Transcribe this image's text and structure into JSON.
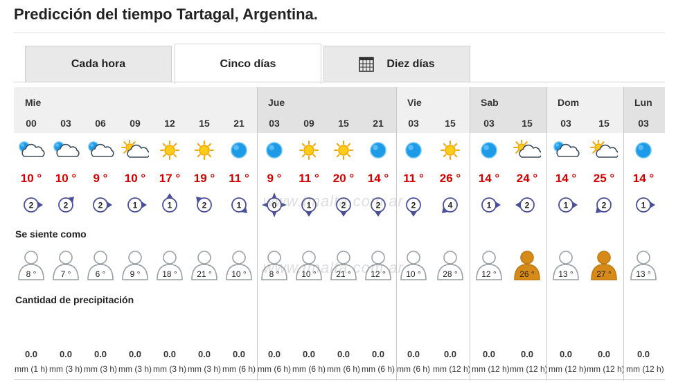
{
  "title": "Predicción del tiempo Tartagal, Argentina.",
  "tabs": [
    {
      "label": "Cada hora",
      "active": false
    },
    {
      "label": "Cinco días",
      "active": true
    },
    {
      "label": "Diez días",
      "active": false,
      "icon": "calendar-icon"
    }
  ],
  "sections": {
    "feels_like": "Se siente como",
    "precipitation": "Cantidad de precipitación"
  },
  "watermark": "www.tmalta.com.ar",
  "days": [
    {
      "name": "Mie",
      "shade": "light",
      "slots": [
        {
          "hour": "00",
          "icon": "cloud-moon",
          "temp": "10 °",
          "wind": "2",
          "dir": 90,
          "feel": "8 °",
          "hot": false,
          "precip": "0.0",
          "unit": "mm (1 h)"
        },
        {
          "hour": "03",
          "icon": "cloud-moon",
          "temp": "10 °",
          "wind": "2",
          "dir": 45,
          "feel": "7 °",
          "hot": false,
          "precip": "0.0",
          "unit": "mm (3 h)"
        },
        {
          "hour": "06",
          "icon": "cloud-moon",
          "temp": "9 °",
          "wind": "2",
          "dir": 90,
          "feel": "6 °",
          "hot": false,
          "precip": "0.0",
          "unit": "mm (3 h)"
        },
        {
          "hour": "09",
          "icon": "sun-cloud",
          "temp": "10 °",
          "wind": "1",
          "dir": 90,
          "feel": "9 °",
          "hot": false,
          "precip": "0.0",
          "unit": "mm (3 h)"
        },
        {
          "hour": "12",
          "icon": "sun",
          "temp": "17 °",
          "wind": "1",
          "dir": 0,
          "feel": "18 °",
          "hot": false,
          "precip": "0.0",
          "unit": "mm (3 h)"
        },
        {
          "hour": "15",
          "icon": "sun",
          "temp": "19 °",
          "wind": "2",
          "dir": 315,
          "feel": "21 °",
          "hot": false,
          "precip": "0.0",
          "unit": "mm (3 h)"
        },
        {
          "hour": "21",
          "icon": "moon",
          "temp": "11 °",
          "wind": "1",
          "dir": 135,
          "feel": "10 °",
          "hot": false,
          "precip": "0.0",
          "unit": "mm (6 h)"
        }
      ]
    },
    {
      "name": "Jue",
      "shade": "dark",
      "slots": [
        {
          "hour": "03",
          "icon": "moon",
          "temp": "9 °",
          "wind": "0",
          "dir": -1,
          "feel": "8 °",
          "hot": false,
          "precip": "0.0",
          "unit": "mm (6 h)"
        },
        {
          "hour": "09",
          "icon": "sun",
          "temp": "11 °",
          "wind": "1",
          "dir": 180,
          "feel": "10 °",
          "hot": false,
          "precip": "0.0",
          "unit": "mm (6 h)"
        },
        {
          "hour": "15",
          "icon": "sun",
          "temp": "20 °",
          "wind": "2",
          "dir": 180,
          "feel": "21 °",
          "hot": false,
          "precip": "0.0",
          "unit": "mm (6 h)"
        },
        {
          "hour": "21",
          "icon": "moon",
          "temp": "14 °",
          "wind": "2",
          "dir": 180,
          "feel": "12 °",
          "hot": false,
          "precip": "0.0",
          "unit": "mm (6 h)"
        }
      ]
    },
    {
      "name": "Vie",
      "shade": "light",
      "slots": [
        {
          "hour": "03",
          "icon": "moon",
          "temp": "11 °",
          "wind": "2",
          "dir": 180,
          "feel": "10 °",
          "hot": false,
          "precip": "0.0",
          "unit": "mm (6 h)"
        },
        {
          "hour": "15",
          "icon": "sun",
          "temp": "26 °",
          "wind": "4",
          "dir": 225,
          "feel": "28 °",
          "hot": false,
          "precip": "0.0",
          "unit": "mm (12 h)"
        }
      ]
    },
    {
      "name": "Sab",
      "shade": "dark",
      "slots": [
        {
          "hour": "03",
          "icon": "moon",
          "temp": "14 °",
          "wind": "1",
          "dir": 90,
          "feel": "12 °",
          "hot": false,
          "precip": "0.0",
          "unit": "mm (12 h)"
        },
        {
          "hour": "15",
          "icon": "sun-cloud",
          "temp": "24 °",
          "wind": "2",
          "dir": 270,
          "feel": "26 °",
          "hot": true,
          "precip": "0.0",
          "unit": "mm (12 h)"
        }
      ]
    },
    {
      "name": "Dom",
      "shade": "light",
      "slots": [
        {
          "hour": "03",
          "icon": "cloud-moon",
          "temp": "14 °",
          "wind": "1",
          "dir": 90,
          "feel": "13 °",
          "hot": false,
          "precip": "0.0",
          "unit": "mm (12 h)"
        },
        {
          "hour": "15",
          "icon": "sun-cloud",
          "temp": "25 °",
          "wind": "2",
          "dir": 225,
          "feel": "27 °",
          "hot": true,
          "precip": "0.0",
          "unit": "mm (12 h)"
        }
      ]
    },
    {
      "name": "Lun",
      "shade": "dark",
      "slots": [
        {
          "hour": "03",
          "icon": "moon",
          "temp": "14 °",
          "wind": "1",
          "dir": 90,
          "feel": "13 °",
          "hot": false,
          "precip": "0.0",
          "unit": "mm (12 h)"
        }
      ]
    }
  ]
}
